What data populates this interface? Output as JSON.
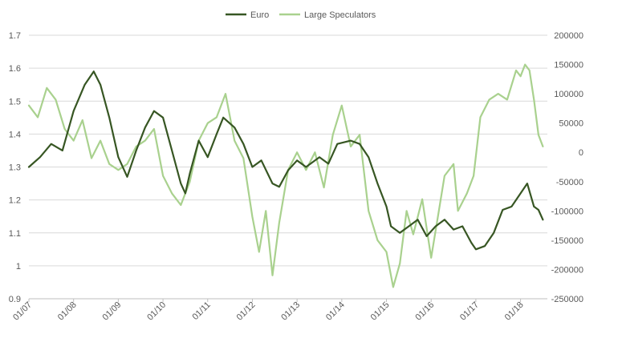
{
  "chart_data": {
    "type": "line",
    "legend_position": "top-center",
    "grid": true,
    "colors": {
      "euro": "#375623",
      "large_speculators": "#a9d18e",
      "grid": "#d9d9d9",
      "text": "#595959"
    },
    "x_ticks": [
      "01/07",
      "01/08",
      "01/09",
      "01/10",
      "01/11",
      "01/12",
      "01/13",
      "01/14",
      "01/15",
      "01/16",
      "01/17",
      "01/18"
    ],
    "left_axis": {
      "ticks": [
        "1.7",
        "1.6",
        "1.5",
        "1.4",
        "1.3",
        "1.2",
        "1.1",
        "1",
        "0.9"
      ],
      "ylim": [
        0.9,
        1.7
      ]
    },
    "right_axis": {
      "ticks": [
        "200000",
        "150000",
        "100000",
        "50000",
        "0",
        "-50000",
        "-100000",
        "-150000",
        "-200000",
        "-250000"
      ],
      "ylim": [
        -250000,
        200000
      ]
    },
    "series": [
      {
        "name": "Euro",
        "axis": "left",
        "x": [
          2007.0,
          2007.25,
          2007.5,
          2007.75,
          2008.0,
          2008.25,
          2008.45,
          2008.6,
          2008.8,
          2009.0,
          2009.2,
          2009.4,
          2009.6,
          2009.8,
          2010.0,
          2010.2,
          2010.4,
          2010.5,
          2010.6,
          2010.8,
          2011.0,
          2011.2,
          2011.35,
          2011.6,
          2011.8,
          2012.0,
          2012.2,
          2012.45,
          2012.6,
          2012.8,
          2013.0,
          2013.2,
          2013.5,
          2013.7,
          2013.9,
          2014.2,
          2014.4,
          2014.6,
          2014.8,
          2015.0,
          2015.1,
          2015.3,
          2015.5,
          2015.7,
          2015.9,
          2016.1,
          2016.3,
          2016.5,
          2016.7,
          2016.9,
          2017.0,
          2017.2,
          2017.4,
          2017.6,
          2017.8,
          2018.0,
          2018.15,
          2018.3,
          2018.4,
          2018.5
        ],
        "values": [
          1.3,
          1.33,
          1.37,
          1.35,
          1.47,
          1.55,
          1.59,
          1.55,
          1.45,
          1.33,
          1.27,
          1.35,
          1.42,
          1.47,
          1.45,
          1.35,
          1.25,
          1.22,
          1.28,
          1.38,
          1.33,
          1.4,
          1.45,
          1.42,
          1.37,
          1.3,
          1.32,
          1.25,
          1.24,
          1.29,
          1.32,
          1.3,
          1.33,
          1.31,
          1.37,
          1.38,
          1.37,
          1.33,
          1.25,
          1.18,
          1.12,
          1.1,
          1.12,
          1.14,
          1.09,
          1.12,
          1.14,
          1.11,
          1.12,
          1.07,
          1.05,
          1.06,
          1.1,
          1.17,
          1.18,
          1.22,
          1.25,
          1.18,
          1.17,
          1.14
        ]
      },
      {
        "name": "Large Speculators",
        "axis": "right",
        "x": [
          2007.0,
          2007.2,
          2007.4,
          2007.6,
          2007.8,
          2008.0,
          2008.2,
          2008.4,
          2008.6,
          2008.8,
          2009.0,
          2009.2,
          2009.4,
          2009.6,
          2009.8,
          2010.0,
          2010.2,
          2010.4,
          2010.6,
          2010.8,
          2011.0,
          2011.2,
          2011.4,
          2011.6,
          2011.8,
          2012.0,
          2012.15,
          2012.3,
          2012.45,
          2012.6,
          2012.8,
          2013.0,
          2013.2,
          2013.4,
          2013.6,
          2013.8,
          2014.0,
          2014.2,
          2014.4,
          2014.6,
          2014.8,
          2015.0,
          2015.15,
          2015.3,
          2015.45,
          2015.6,
          2015.8,
          2016.0,
          2016.15,
          2016.3,
          2016.5,
          2016.6,
          2016.8,
          2016.95,
          2017.1,
          2017.3,
          2017.5,
          2017.7,
          2017.9,
          2018.0,
          2018.1,
          2018.2,
          2018.3,
          2018.4,
          2018.5
        ],
        "values": [
          80000,
          60000,
          110000,
          90000,
          40000,
          20000,
          55000,
          -10000,
          20000,
          -20000,
          -30000,
          -20000,
          10000,
          20000,
          40000,
          -40000,
          -70000,
          -90000,
          -50000,
          20000,
          50000,
          60000,
          100000,
          20000,
          -10000,
          -110000,
          -170000,
          -100000,
          -210000,
          -120000,
          -30000,
          0,
          -30000,
          0,
          -60000,
          30000,
          80000,
          10000,
          30000,
          -100000,
          -150000,
          -170000,
          -230000,
          -190000,
          -100000,
          -140000,
          -80000,
          -180000,
          -110000,
          -40000,
          -20000,
          -100000,
          -70000,
          -40000,
          60000,
          90000,
          100000,
          90000,
          140000,
          130000,
          150000,
          140000,
          90000,
          30000,
          10000
        ]
      }
    ]
  }
}
